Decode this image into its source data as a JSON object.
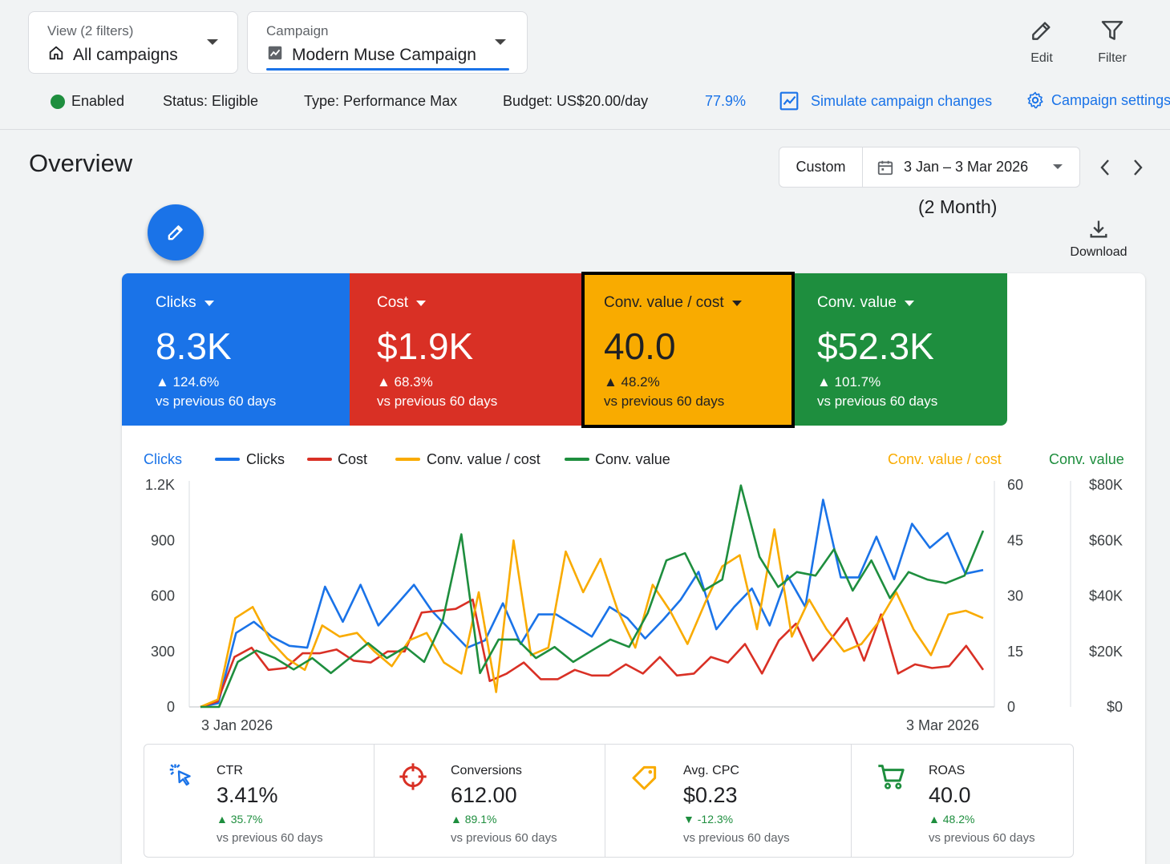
{
  "colors": {
    "accent": "#1a73e8",
    "clicks": "#1a73e8",
    "cost": "#d93025",
    "conv_value_cost": "#f9ab00",
    "conv_value": "#1e8e3e",
    "enabled": "#1e8e3e"
  },
  "header": {
    "view_label": "View (2 filters)",
    "view_value": "All campaigns",
    "campaign_label": "Campaign",
    "campaign_value": "Modern Muse Campaign",
    "edit_label": "Edit",
    "filter_label": "Filter"
  },
  "status_bar": {
    "enabled": "Enabled",
    "status": "Status: Eligible",
    "type": "Type: Performance Max",
    "budget": "Budget: US$20.00/day",
    "optimization": "77.9%",
    "simulate": "Simulate campaign changes",
    "settings": "Campaign settings"
  },
  "overview": {
    "title": "Overview",
    "date_preset": "Custom",
    "date_range": "3 Jan – 3 Mar 2026",
    "date_sub": "(2 Month)",
    "download_label": "Download"
  },
  "metrics": [
    {
      "title": "Clicks",
      "value": "8.3K",
      "delta": "▲ 124.6%",
      "vs": "vs previous 60 days",
      "color": "#1a73e8"
    },
    {
      "title": "Cost",
      "value": "$1.9K",
      "delta": "▲ 68.3%",
      "vs": "vs previous 60 days",
      "color": "#d93025"
    },
    {
      "title": "Conv. value / cost",
      "value": "40.0",
      "delta": "▲ 48.2%",
      "vs": "vs previous 60 days",
      "color": "#f9ab00"
    },
    {
      "title": "Conv. value",
      "value": "$52.3K",
      "delta": "▲ 101.7%",
      "vs": "vs previous 60 days",
      "color": "#1e8e3e"
    }
  ],
  "chart_data": {
    "type": "line",
    "x_start": "3 Jan 2026",
    "x_end": "3 Mar 2026",
    "left_axis_title": "Clicks",
    "right_axis_1_title": "Conv. value / cost",
    "right_axis_2_title": "Conv. value",
    "left_ticks": [
      "1.2K",
      "900",
      "600",
      "300",
      "0"
    ],
    "right_ticks_1": [
      "60",
      "45",
      "30",
      "15",
      "0"
    ],
    "right_ticks_2": [
      "$80K",
      "$60K",
      "$40K",
      "$20K",
      "$0"
    ],
    "ylim_left": [
      0,
      1200
    ],
    "legend": [
      "Clicks",
      "Cost",
      "Conv. value / cost",
      "Conv. value"
    ],
    "series": [
      {
        "name": "Clicks",
        "color": "#1a73e8",
        "values": [
          0,
          20,
          400,
          460,
          380,
          330,
          320,
          650,
          460,
          660,
          440,
          550,
          660,
          520,
          420,
          320,
          360,
          560,
          340,
          500,
          500,
          440,
          380,
          540,
          480,
          370,
          470,
          580,
          730,
          420,
          540,
          640,
          440,
          710,
          540,
          1120,
          700,
          700,
          920,
          690,
          990,
          860,
          940,
          720,
          740
        ]
      },
      {
        "name": "Cost",
        "color": "#d93025",
        "values": [
          0,
          30,
          270,
          320,
          200,
          210,
          290,
          290,
          310,
          250,
          240,
          300,
          300,
          510,
          520,
          530,
          580,
          140,
          180,
          240,
          150,
          150,
          200,
          170,
          170,
          230,
          180,
          270,
          170,
          180,
          270,
          240,
          340,
          180,
          360,
          450,
          250,
          360,
          480,
          250,
          500,
          180,
          230,
          210,
          220,
          330,
          200
        ]
      },
      {
        "name": "Conv. value / cost",
        "color": "#f9ab00",
        "values": [
          0,
          2,
          24,
          27,
          18,
          13,
          10,
          22,
          19,
          20,
          15,
          11,
          18,
          20,
          12,
          9,
          31,
          4,
          45,
          14,
          16,
          42,
          31,
          40,
          26,
          16,
          33,
          26,
          17,
          28,
          38,
          41,
          21,
          48,
          19,
          29,
          21,
          15,
          17,
          23,
          31,
          21,
          14,
          25,
          26,
          24
        ]
      },
      {
        "name": "Conv. value",
        "color": "#1e8e3e",
        "values": [
          0,
          0,
          16200,
          20300,
          17600,
          13500,
          17600,
          12200,
          17600,
          23000,
          17600,
          21600,
          16200,
          31100,
          62200,
          12200,
          24300,
          24300,
          17600,
          21600,
          16200,
          20300,
          24300,
          21600,
          33800,
          52800,
          55400,
          41900,
          45900,
          79800,
          54100,
          43200,
          48600,
          47300,
          56800,
          41900,
          52800,
          39200,
          48600,
          45900,
          44600,
          47300,
          63500
        ]
      }
    ]
  },
  "stats": [
    {
      "label": "CTR",
      "value": "3.41%",
      "delta": "▲ 35.7%",
      "vs": "vs previous 60 days",
      "icon": "cursor-click-icon"
    },
    {
      "label": "Conversions",
      "value": "612.00",
      "delta": "▲ 89.1%",
      "vs": "vs previous 60 days",
      "icon": "crosshair-icon"
    },
    {
      "label": "Avg. CPC",
      "value": "$0.23",
      "delta": "▼ -12.3%",
      "vs": "vs previous 60 days",
      "icon": "price-tag-icon"
    },
    {
      "label": "ROAS",
      "value": "40.0",
      "delta": "▲ 48.2%",
      "vs": "vs previous 60 days",
      "icon": "shopping-cart-icon"
    }
  ]
}
